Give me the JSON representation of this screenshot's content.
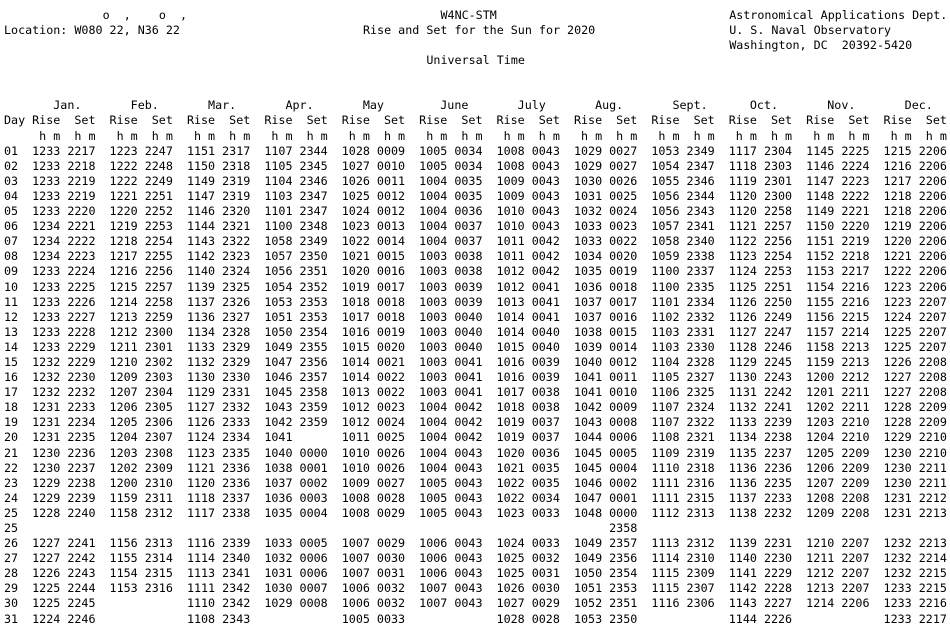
{
  "header": {
    "degree_minute_marks": "o  ,    o  ,",
    "location": "Location: W080 22, N36 22",
    "station_id": "W4NC-STM",
    "title": "Rise and Set for the Sun for 2020",
    "time_system": "Universal Time",
    "agency_dept": "Astronomical Applications Dept.",
    "agency_org": "U. S. Naval Observatory",
    "agency_address": "Washington, DC  20392-5420"
  },
  "table": {
    "day_header": "Day",
    "rise_header": "Rise",
    "set_header": "Set",
    "unit_header": "h m",
    "months": [
      "Jan.",
      "Feb.",
      "Mar.",
      "Apr.",
      "May",
      "June",
      "July",
      "Aug.",
      "Sept.",
      "Oct.",
      "Nov.",
      "Dec."
    ],
    "rows": [
      {
        "day": "01",
        "times": [
          "1233",
          "2217",
          "1223",
          "2247",
          "1151",
          "2317",
          "1107",
          "2344",
          "1028",
          "0009",
          "1005",
          "0034",
          "1008",
          "0043",
          "1029",
          "0027",
          "1053",
          "2349",
          "1117",
          "2304",
          "1145",
          "2225",
          "1215",
          "2206"
        ]
      },
      {
        "day": "02",
        "times": [
          "1233",
          "2218",
          "1222",
          "2248",
          "1150",
          "2318",
          "1105",
          "2345",
          "1027",
          "0010",
          "1005",
          "0034",
          "1008",
          "0043",
          "1029",
          "0027",
          "1054",
          "2347",
          "1118",
          "2303",
          "1146",
          "2224",
          "1216",
          "2206"
        ]
      },
      {
        "day": "03",
        "times": [
          "1233",
          "2219",
          "1222",
          "2249",
          "1149",
          "2319",
          "1104",
          "2346",
          "1026",
          "0011",
          "1004",
          "0035",
          "1009",
          "0043",
          "1030",
          "0026",
          "1055",
          "2346",
          "1119",
          "2301",
          "1147",
          "2223",
          "1217",
          "2206"
        ]
      },
      {
        "day": "04",
        "times": [
          "1233",
          "2219",
          "1221",
          "2251",
          "1147",
          "2319",
          "1103",
          "2347",
          "1025",
          "0012",
          "1004",
          "0035",
          "1009",
          "0043",
          "1031",
          "0025",
          "1056",
          "2344",
          "1120",
          "2300",
          "1148",
          "2222",
          "1218",
          "2206"
        ]
      },
      {
        "day": "05",
        "times": [
          "1233",
          "2220",
          "1220",
          "2252",
          "1146",
          "2320",
          "1101",
          "2347",
          "1024",
          "0012",
          "1004",
          "0036",
          "1010",
          "0043",
          "1032",
          "0024",
          "1056",
          "2343",
          "1120",
          "2258",
          "1149",
          "2221",
          "1218",
          "2206"
        ]
      },
      {
        "day": "06",
        "times": [
          "1234",
          "2221",
          "1219",
          "2253",
          "1144",
          "2321",
          "1100",
          "2348",
          "1023",
          "0013",
          "1004",
          "0037",
          "1010",
          "0043",
          "1033",
          "0023",
          "1057",
          "2341",
          "1121",
          "2257",
          "1150",
          "2220",
          "1219",
          "2206"
        ]
      },
      {
        "day": "07",
        "times": [
          "1234",
          "2222",
          "1218",
          "2254",
          "1143",
          "2322",
          "1058",
          "2349",
          "1022",
          "0014",
          "1004",
          "0037",
          "1011",
          "0042",
          "1033",
          "0022",
          "1058",
          "2340",
          "1122",
          "2256",
          "1151",
          "2219",
          "1220",
          "2206"
        ]
      },
      {
        "day": "08",
        "times": [
          "1234",
          "2223",
          "1217",
          "2255",
          "1142",
          "2323",
          "1057",
          "2350",
          "1021",
          "0015",
          "1003",
          "0038",
          "1011",
          "0042",
          "1034",
          "0020",
          "1059",
          "2338",
          "1123",
          "2254",
          "1152",
          "2218",
          "1221",
          "2206"
        ]
      },
      {
        "day": "09",
        "times": [
          "1233",
          "2224",
          "1216",
          "2256",
          "1140",
          "2324",
          "1056",
          "2351",
          "1020",
          "0016",
          "1003",
          "0038",
          "1012",
          "0042",
          "1035",
          "0019",
          "1100",
          "2337",
          "1124",
          "2253",
          "1153",
          "2217",
          "1222",
          "2206"
        ]
      },
      {
        "day": "10",
        "times": [
          "1233",
          "2225",
          "1215",
          "2257",
          "1139",
          "2325",
          "1054",
          "2352",
          "1019",
          "0017",
          "1003",
          "0039",
          "1012",
          "0041",
          "1036",
          "0018",
          "1100",
          "2335",
          "1125",
          "2251",
          "1154",
          "2216",
          "1223",
          "2206"
        ]
      },
      {
        "day": "11",
        "times": [
          "1233",
          "2226",
          "1214",
          "2258",
          "1137",
          "2326",
          "1053",
          "2353",
          "1018",
          "0018",
          "1003",
          "0039",
          "1013",
          "0041",
          "1037",
          "0017",
          "1101",
          "2334",
          "1126",
          "2250",
          "1155",
          "2216",
          "1223",
          "2207"
        ]
      },
      {
        "day": "12",
        "times": [
          "1233",
          "2227",
          "1213",
          "2259",
          "1136",
          "2327",
          "1051",
          "2353",
          "1017",
          "0018",
          "1003",
          "0040",
          "1014",
          "0041",
          "1037",
          "0016",
          "1102",
          "2332",
          "1126",
          "2249",
          "1156",
          "2215",
          "1224",
          "2207"
        ]
      },
      {
        "day": "13",
        "times": [
          "1233",
          "2228",
          "1212",
          "2300",
          "1134",
          "2328",
          "1050",
          "2354",
          "1016",
          "0019",
          "1003",
          "0040",
          "1014",
          "0040",
          "1038",
          "0015",
          "1103",
          "2331",
          "1127",
          "2247",
          "1157",
          "2214",
          "1225",
          "2207"
        ]
      },
      {
        "day": "14",
        "times": [
          "1233",
          "2229",
          "1211",
          "2301",
          "1133",
          "2329",
          "1049",
          "2355",
          "1015",
          "0020",
          "1003",
          "0040",
          "1015",
          "0040",
          "1039",
          "0014",
          "1103",
          "2330",
          "1128",
          "2246",
          "1158",
          "2213",
          "1225",
          "2207"
        ]
      },
      {
        "day": "15",
        "times": [
          "1232",
          "2229",
          "1210",
          "2302",
          "1132",
          "2329",
          "1047",
          "2356",
          "1014",
          "0021",
          "1003",
          "0041",
          "1016",
          "0039",
          "1040",
          "0012",
          "1104",
          "2328",
          "1129",
          "2245",
          "1159",
          "2213",
          "1226",
          "2208"
        ]
      },
      {
        "day": "16",
        "times": [
          "1232",
          "2230",
          "1209",
          "2303",
          "1130",
          "2330",
          "1046",
          "2357",
          "1014",
          "0022",
          "1003",
          "0041",
          "1016",
          "0039",
          "1041",
          "0011",
          "1105",
          "2327",
          "1130",
          "2243",
          "1200",
          "2212",
          "1227",
          "2208"
        ]
      },
      {
        "day": "17",
        "times": [
          "1232",
          "2232",
          "1207",
          "2304",
          "1129",
          "2331",
          "1045",
          "2358",
          "1013",
          "0022",
          "1003",
          "0041",
          "1017",
          "0038",
          "1041",
          "0010",
          "1106",
          "2325",
          "1131",
          "2242",
          "1201",
          "2211",
          "1227",
          "2208"
        ]
      },
      {
        "day": "18",
        "times": [
          "1231",
          "2233",
          "1206",
          "2305",
          "1127",
          "2332",
          "1043",
          "2359",
          "1012",
          "0023",
          "1004",
          "0042",
          "1018",
          "0038",
          "1042",
          "0009",
          "1107",
          "2324",
          "1132",
          "2241",
          "1202",
          "2211",
          "1228",
          "2209"
        ]
      },
      {
        "day": "19",
        "times": [
          "1231",
          "2234",
          "1205",
          "2306",
          "1126",
          "2333",
          "1042",
          "2359",
          "1012",
          "0024",
          "1004",
          "0042",
          "1019",
          "0037",
          "1043",
          "0008",
          "1107",
          "2322",
          "1133",
          "2239",
          "1203",
          "2210",
          "1228",
          "2209"
        ]
      },
      {
        "day": "20",
        "times": [
          "1231",
          "2235",
          "1204",
          "2307",
          "1124",
          "2334",
          "1041",
          "",
          "1011",
          "0025",
          "1004",
          "0042",
          "1019",
          "0037",
          "1044",
          "0006",
          "1108",
          "2321",
          "1134",
          "2238",
          "1204",
          "2210",
          "1229",
          "2210"
        ]
      },
      {
        "day": "21",
        "times": [
          "1230",
          "2236",
          "1203",
          "2308",
          "1123",
          "2335",
          "1040",
          "0000",
          "1010",
          "0026",
          "1004",
          "0043",
          "1020",
          "0036",
          "1045",
          "0005",
          "1109",
          "2319",
          "1135",
          "2237",
          "1205",
          "2209",
          "1230",
          "2210"
        ]
      },
      {
        "day": "22",
        "times": [
          "1230",
          "2237",
          "1202",
          "2309",
          "1121",
          "2336",
          "1038",
          "0001",
          "1010",
          "0026",
          "1004",
          "0043",
          "1021",
          "0035",
          "1045",
          "0004",
          "1110",
          "2318",
          "1136",
          "2236",
          "1206",
          "2209",
          "1230",
          "2211"
        ]
      },
      {
        "day": "23",
        "times": [
          "1229",
          "2238",
          "1200",
          "2310",
          "1120",
          "2336",
          "1037",
          "0002",
          "1009",
          "0027",
          "1005",
          "0043",
          "1022",
          "0035",
          "1046",
          "0002",
          "1111",
          "2316",
          "1136",
          "2235",
          "1207",
          "2209",
          "1230",
          "2211"
        ]
      },
      {
        "day": "24",
        "times": [
          "1229",
          "2239",
          "1159",
          "2311",
          "1118",
          "2337",
          "1036",
          "0003",
          "1008",
          "0028",
          "1005",
          "0043",
          "1022",
          "0034",
          "1047",
          "0001",
          "1111",
          "2315",
          "1137",
          "2233",
          "1208",
          "2208",
          "1231",
          "2212"
        ]
      },
      {
        "day": "25",
        "times": [
          "1228",
          "2240",
          "1158",
          "2312",
          "1117",
          "2338",
          "1035",
          "0004",
          "1008",
          "0029",
          "1005",
          "0043",
          "1023",
          "0033",
          "1048",
          "0000",
          "1112",
          "2313",
          "1138",
          "2232",
          "1209",
          "2208",
          "1231",
          "2213"
        ]
      },
      {
        "day": "25",
        "times": [
          "",
          "",
          "",
          "",
          "",
          "",
          "",
          "",
          "",
          "",
          "",
          "",
          "",
          "",
          "",
          "2358",
          "",
          "",
          "",
          "",
          "",
          "",
          "",
          ""
        ]
      },
      {
        "day": "26",
        "times": [
          "1227",
          "2241",
          "1156",
          "2313",
          "1116",
          "2339",
          "1033",
          "0005",
          "1007",
          "0029",
          "1006",
          "0043",
          "1024",
          "0033",
          "1049",
          "2357",
          "1113",
          "2312",
          "1139",
          "2231",
          "1210",
          "2207",
          "1232",
          "2213"
        ]
      },
      {
        "day": "27",
        "times": [
          "1227",
          "2242",
          "1155",
          "2314",
          "1114",
          "2340",
          "1032",
          "0006",
          "1007",
          "0030",
          "1006",
          "0043",
          "1025",
          "0032",
          "1049",
          "2356",
          "1114",
          "2310",
          "1140",
          "2230",
          "1211",
          "2207",
          "1232",
          "2214"
        ]
      },
      {
        "day": "28",
        "times": [
          "1226",
          "2243",
          "1154",
          "2315",
          "1113",
          "2341",
          "1031",
          "0006",
          "1007",
          "0031",
          "1006",
          "0043",
          "1025",
          "0031",
          "1050",
          "2354",
          "1115",
          "2309",
          "1141",
          "2229",
          "1212",
          "2207",
          "1232",
          "2215"
        ]
      },
      {
        "day": "29",
        "times": [
          "1225",
          "2244",
          "1153",
          "2316",
          "1111",
          "2342",
          "1030",
          "0007",
          "1006",
          "0032",
          "1007",
          "0043",
          "1026",
          "0030",
          "1051",
          "2353",
          "1115",
          "2307",
          "1142",
          "2228",
          "1213",
          "2207",
          "1233",
          "2215"
        ]
      },
      {
        "day": "30",
        "times": [
          "1225",
          "2245",
          "",
          "",
          "1110",
          "2342",
          "1029",
          "0008",
          "1006",
          "0032",
          "1007",
          "0043",
          "1027",
          "0029",
          "1052",
          "2351",
          "1116",
          "2306",
          "1143",
          "2227",
          "1214",
          "2206",
          "1233",
          "2216"
        ]
      },
      {
        "day": "31",
        "times": [
          "1224",
          "2246",
          "",
          "",
          "1108",
          "2343",
          "",
          "",
          "1005",
          "0033",
          "",
          "",
          "1028",
          "0028",
          "1053",
          "2350",
          "",
          "",
          "1144",
          "2226",
          "",
          "",
          "1233",
          "2217"
        ]
      }
    ]
  }
}
